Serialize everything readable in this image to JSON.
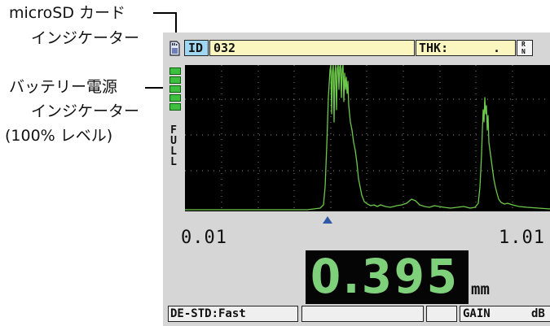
{
  "callouts": {
    "microsd_line1": "microSD カード",
    "microsd_line2": "インジケーター",
    "battery_line1": "バッテリー電源",
    "battery_line2": "インジケーター",
    "battery_line3": "(100% レベル)"
  },
  "header": {
    "id_label": "ID",
    "id_value": "032",
    "thk_label": "THK:",
    "thk_value": "."
  },
  "battery": {
    "level_percent": 100,
    "label_chars": [
      "F",
      "U",
      "L",
      "L"
    ]
  },
  "waveform_scale": {
    "start": "0.01",
    "end": "1.01",
    "gate_marker_fraction": 0.37
  },
  "measurement": {
    "value": "0.395",
    "unit": "mm"
  },
  "status_bar": {
    "mode": "DE-STD:Fast",
    "gain_label": "GAIN",
    "gain_unit": "dB"
  },
  "colors": {
    "trace": "#6cc84a",
    "readout_value": "#7fd07a",
    "field_yellow": "#fbf6c0",
    "id_tag": "#9fd6f2",
    "marker": "#2f58a8"
  },
  "icons": {
    "microsd": "microsd-card-icon",
    "battery": "battery-icon",
    "gate_marker": "triangle-up-icon"
  }
}
